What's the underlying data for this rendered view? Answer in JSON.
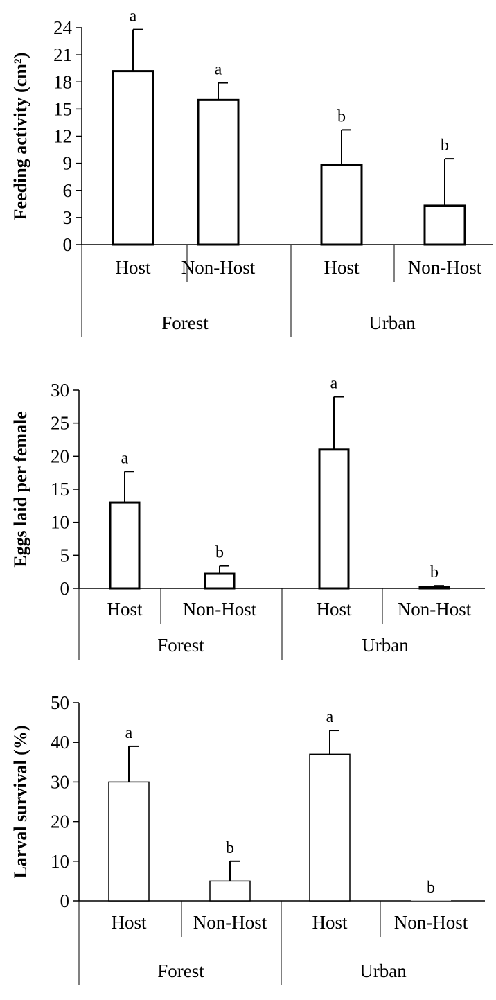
{
  "chart_data": [
    {
      "type": "bar",
      "ylabel": "Feeding activity (cm²)",
      "ylim": [
        0,
        24
      ],
      "yticks": [
        0,
        3,
        6,
        9,
        12,
        15,
        18,
        21,
        24
      ],
      "groups": [
        "Forest",
        "Urban"
      ],
      "categories": [
        "Host",
        "Non-Host",
        "Host",
        "Non-Host"
      ],
      "values": [
        19.2,
        16.0,
        8.8,
        4.3
      ],
      "errors": [
        4.6,
        1.9,
        3.9,
        5.2
      ],
      "significance": [
        "a",
        "a",
        "b",
        "b"
      ]
    },
    {
      "type": "bar",
      "ylabel": "Eggs laid per female",
      "ylim": [
        0,
        30
      ],
      "yticks": [
        0,
        5,
        10,
        15,
        20,
        25,
        30
      ],
      "groups": [
        "Forest",
        "Urban"
      ],
      "categories": [
        "Host",
        "Non-Host",
        "Host",
        "Non-Host"
      ],
      "values": [
        13.0,
        2.2,
        21.0,
        0.2
      ],
      "errors": [
        4.7,
        1.2,
        8.0,
        0.2
      ],
      "significance": [
        "a",
        "b",
        "a",
        "b"
      ]
    },
    {
      "type": "bar",
      "ylabel": "Larval survival (%)",
      "ylim": [
        0,
        50
      ],
      "yticks": [
        0,
        10,
        20,
        30,
        40,
        50
      ],
      "groups": [
        "Forest",
        "Urban"
      ],
      "categories": [
        "Host",
        "Non-Host",
        "Host",
        "Non-Host"
      ],
      "values": [
        30,
        5,
        37,
        0
      ],
      "errors": [
        9,
        5,
        6,
        0
      ],
      "significance": [
        "a",
        "b",
        "a",
        "b"
      ]
    }
  ]
}
